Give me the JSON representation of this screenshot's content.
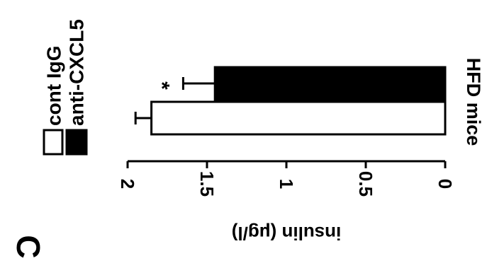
{
  "panel_label": "C",
  "chart_data": {
    "type": "bar",
    "orientation": "rotated-90",
    "categories": [
      "HFD mice"
    ],
    "series": [
      {
        "name": "cont IgG",
        "values": [
          1.85
        ],
        "error": [
          0.1
        ],
        "color": "#ffffff"
      },
      {
        "name": "anti-CXCL5",
        "values": [
          1.45
        ],
        "error": [
          0.2
        ],
        "color": "#000000"
      }
    ],
    "annotations": [
      {
        "series": "anti-CXCL5",
        "text": "*"
      }
    ],
    "ylabel": "insulin (μg/l)",
    "ylim": [
      0,
      2
    ],
    "yticks": [
      0,
      0.5,
      1,
      1.5,
      2
    ],
    "ytick_labels": [
      "0",
      "0.5",
      "1",
      "1.5",
      "2"
    ],
    "legend_placement": "top-left",
    "grid": false
  }
}
